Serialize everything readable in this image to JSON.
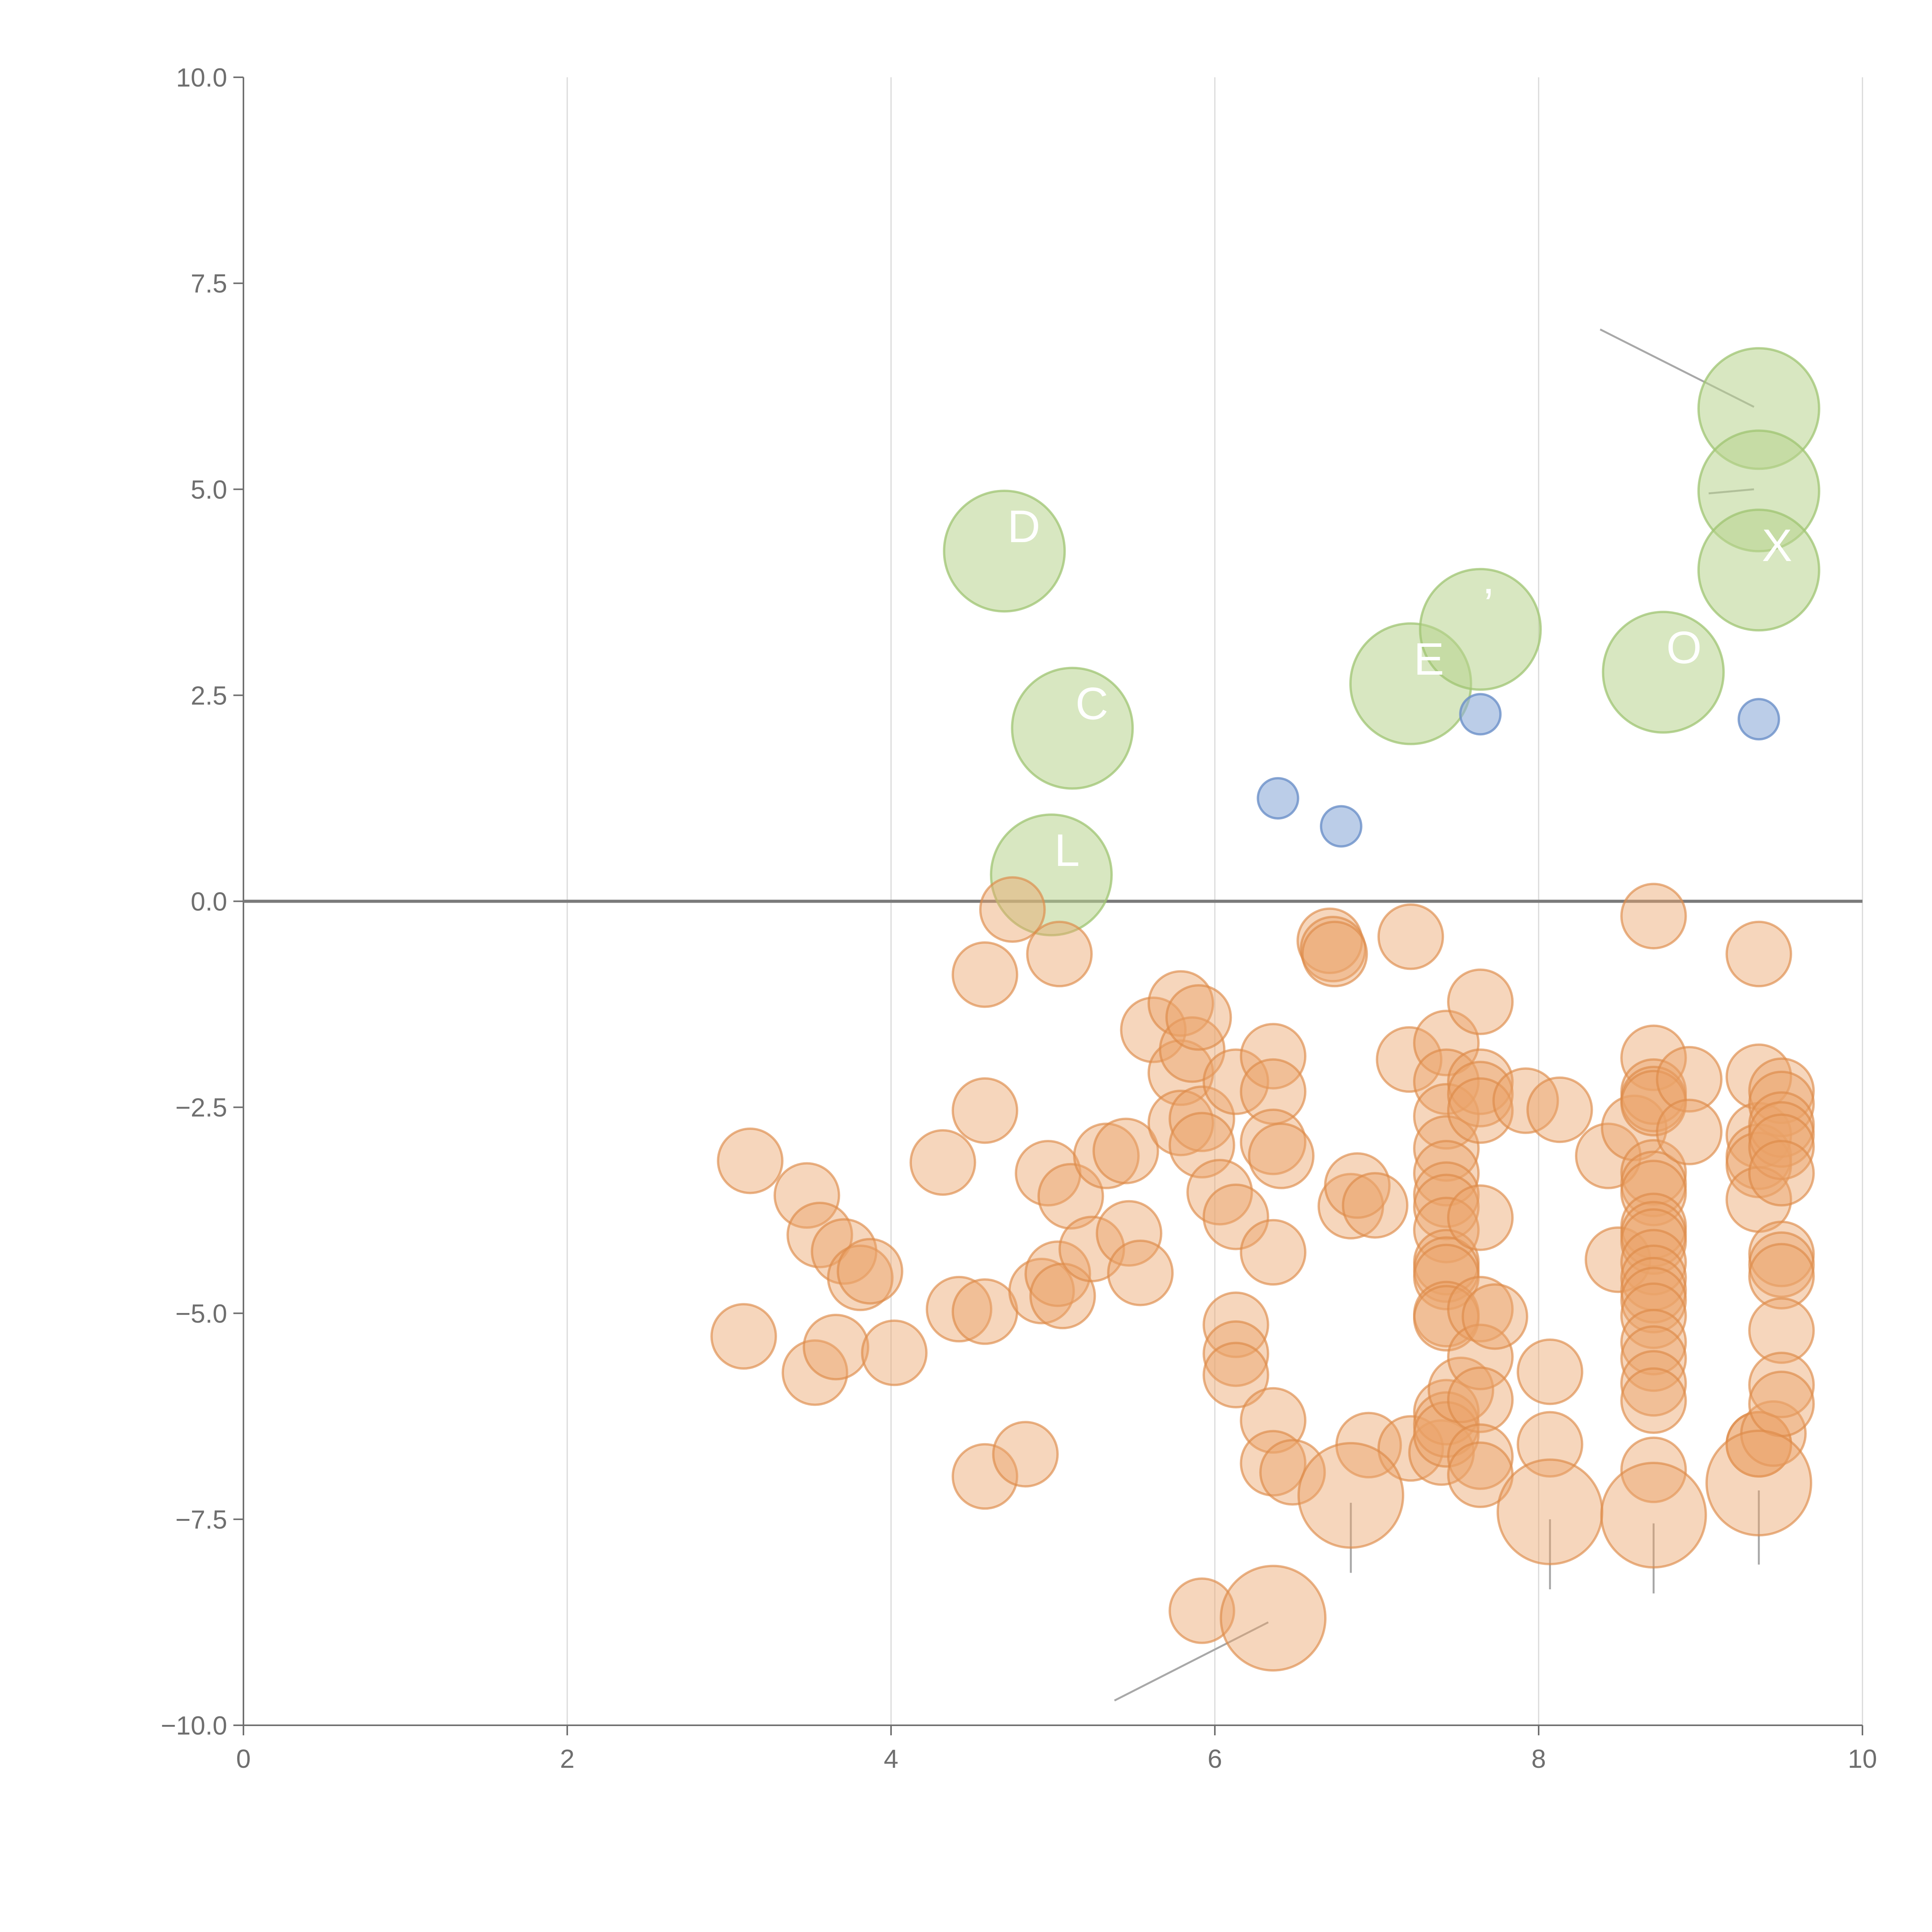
{
  "chart_data": {
    "type": "scatter",
    "title": "",
    "xlabel": "",
    "ylabel": "",
    "xlim": [
      0,
      10
    ],
    "ylim": [
      -10,
      10
    ],
    "x_ticks": [
      "0",
      "2",
      "4",
      "6",
      "8",
      "10"
    ],
    "y_ticks": [
      "10.0",
      "7.5",
      "5.0",
      "2.5",
      "0.0",
      "−2.5",
      "−5.0",
      "−7.5",
      "−10.0"
    ],
    "x_tick_values": [
      0,
      2,
      4,
      6,
      8,
      10
    ],
    "y_tick_values": [
      10,
      7.5,
      5,
      2.5,
      0,
      -2.5,
      -5,
      -7.5,
      -10
    ],
    "grid": "vertical",
    "reference_line_y": 0,
    "series": [
      {
        "name": "positive-large",
        "color": "#b8d48e",
        "stroke": "#9fc471",
        "opacity": 0.55,
        "size": 3,
        "points": [
          {
            "x": 4.7,
            "y": 4.25,
            "label": "D"
          },
          {
            "x": 5.12,
            "y": 2.1,
            "label": "C"
          },
          {
            "x": 4.99,
            "y": 0.32,
            "label": "L"
          },
          {
            "x": 7.21,
            "y": 2.64,
            "label": "E"
          },
          {
            "x": 7.64,
            "y": 3.3,
            "label": "’"
          },
          {
            "x": 8.77,
            "y": 2.78,
            "label": "O"
          },
          {
            "x": 9.36,
            "y": 5.98,
            "label": ""
          },
          {
            "x": 9.36,
            "y": 4.98,
            "label": ""
          },
          {
            "x": 9.36,
            "y": 4.02,
            "label": "X"
          }
        ]
      },
      {
        "name": "positive-small",
        "color": "#8eacd9",
        "stroke": "#6b90c8",
        "opacity": 0.6,
        "size": 1,
        "points": [
          {
            "x": 6.39,
            "y": 1.25
          },
          {
            "x": 6.78,
            "y": 0.91
          },
          {
            "x": 7.64,
            "y": 2.27
          },
          {
            "x": 9.36,
            "y": 2.21
          }
        ]
      },
      {
        "name": "negative",
        "color": "#eba46a",
        "stroke": "#dd8a48",
        "opacity": 0.45,
        "size": 1.6,
        "points": [
          [
            3.09,
            -5.28
          ],
          [
            3.13,
            -3.15
          ],
          [
            3.48,
            -3.57
          ],
          [
            3.53,
            -5.72
          ],
          [
            3.56,
            -4.05
          ],
          [
            3.66,
            -5.41
          ],
          [
            3.71,
            -4.25
          ],
          [
            3.81,
            -4.57
          ],
          [
            3.87,
            -4.49
          ],
          [
            4.02,
            -5.48
          ],
          [
            4.32,
            -3.17
          ],
          [
            4.42,
            -4.95
          ],
          [
            4.58,
            -0.89
          ],
          [
            4.58,
            -2.54
          ],
          [
            4.58,
            -4.98
          ],
          [
            4.58,
            -6.98
          ],
          [
            4.75,
            -0.1
          ],
          [
            4.83,
            -6.71
          ],
          [
            4.93,
            -4.73
          ],
          [
            4.97,
            -3.3
          ],
          [
            5.03,
            -4.52
          ],
          [
            5.04,
            -0.64
          ],
          [
            5.06,
            -4.79
          ],
          [
            5.11,
            -3.58
          ],
          [
            5.24,
            -4.22
          ],
          [
            5.33,
            -3.09
          ],
          [
            5.45,
            -3.03
          ],
          [
            5.47,
            -4.03
          ],
          [
            5.54,
            -4.51
          ],
          [
            5.62,
            -1.56
          ],
          [
            5.79,
            -1.24
          ],
          [
            5.79,
            -2.08
          ],
          [
            5.79,
            -2.69
          ],
          [
            5.86,
            -1.8
          ],
          [
            5.9,
            -1.41
          ],
          [
            5.92,
            -2.64
          ],
          [
            5.92,
            -2.96
          ],
          [
            6.03,
            -3.53
          ],
          [
            6.13,
            -2.19
          ],
          [
            6.13,
            -3.83
          ],
          [
            6.13,
            -5.14
          ],
          [
            6.13,
            -5.49
          ],
          [
            6.13,
            -5.75
          ],
          [
            6.36,
            -1.88
          ],
          [
            6.36,
            -2.31
          ],
          [
            6.36,
            -2.92
          ],
          [
            6.36,
            -4.26
          ],
          [
            6.36,
            -6.3
          ],
          [
            6.36,
            -6.82
          ],
          [
            6.41,
            -3.09
          ],
          [
            6.48,
            -6.93
          ],
          [
            6.71,
            -0.48
          ],
          [
            6.73,
            -0.58
          ],
          [
            6.74,
            -0.64
          ],
          [
            6.84,
            -3.7
          ],
          [
            6.88,
            -3.45
          ],
          [
            6.99,
            -3.69
          ],
          [
            6.95,
            -6.6
          ],
          [
            7.2,
            -1.92
          ],
          [
            7.21,
            -0.43
          ],
          [
            7.21,
            -6.64
          ],
          [
            7.4,
            -6.69
          ],
          [
            7.43,
            -1.72
          ],
          [
            7.43,
            -2.19
          ],
          [
            7.43,
            -2.61
          ],
          [
            7.43,
            -3.0
          ],
          [
            7.43,
            -3.3
          ],
          [
            7.43,
            -3.56
          ],
          [
            7.43,
            -3.71
          ],
          [
            7.43,
            -3.99
          ],
          [
            7.43,
            -4.38
          ],
          [
            7.43,
            -4.47
          ],
          [
            7.43,
            -4.56
          ],
          [
            7.43,
            -5.01
          ],
          [
            7.43,
            -5.06
          ],
          [
            7.43,
            -6.2
          ],
          [
            7.43,
            -6.35
          ],
          [
            7.43,
            -6.47
          ],
          [
            7.52,
            -5.93
          ],
          [
            7.64,
            -1.22
          ],
          [
            7.64,
            -2.19
          ],
          [
            7.64,
            -2.34
          ],
          [
            7.64,
            -2.54
          ],
          [
            7.64,
            -3.84
          ],
          [
            7.64,
            -4.95
          ],
          [
            7.64,
            -5.53
          ],
          [
            7.64,
            -6.05
          ],
          [
            7.64,
            -6.74
          ],
          [
            7.64,
            -6.96
          ],
          [
            7.73,
            -5.04
          ],
          [
            7.92,
            -2.42
          ],
          [
            8.07,
            -5.71
          ],
          [
            8.07,
            -6.59
          ],
          [
            8.13,
            -2.53
          ],
          [
            8.43,
            -3.09
          ],
          [
            8.49,
            -4.35
          ],
          [
            8.59,
            -2.75
          ],
          [
            8.71,
            -0.18
          ],
          [
            8.71,
            -1.9
          ],
          [
            8.71,
            -2.31
          ],
          [
            8.71,
            -2.4
          ],
          [
            8.71,
            -2.45
          ],
          [
            8.71,
            -3.29
          ],
          [
            8.71,
            -3.43
          ],
          [
            8.71,
            -3.54
          ],
          [
            8.71,
            -3.94
          ],
          [
            8.71,
            -4.04
          ],
          [
            8.71,
            -4.13
          ],
          [
            8.71,
            -4.38
          ],
          [
            8.71,
            -4.57
          ],
          [
            8.71,
            -4.72
          ],
          [
            8.71,
            -4.84
          ],
          [
            8.71,
            -5.03
          ],
          [
            8.71,
            -5.35
          ],
          [
            8.71,
            -5.55
          ],
          [
            8.71,
            -5.85
          ],
          [
            8.71,
            -6.06
          ],
          [
            8.71,
            -6.9
          ],
          [
            8.93,
            -2.16
          ],
          [
            8.93,
            -2.8
          ],
          [
            9.36,
            -0.64
          ],
          [
            9.36,
            -2.13
          ],
          [
            9.36,
            -2.84
          ],
          [
            9.36,
            -3.1
          ],
          [
            9.36,
            -3.2
          ],
          [
            9.36,
            -3.62
          ],
          [
            9.36,
            -6.59
          ],
          [
            9.36,
            -6.59
          ],
          [
            9.45,
            -6.46
          ],
          [
            9.5,
            -2.3
          ],
          [
            9.5,
            -2.46
          ],
          [
            9.5,
            -2.71
          ],
          [
            9.5,
            -2.83
          ],
          [
            9.5,
            -2.98
          ],
          [
            9.5,
            -3.3
          ],
          [
            9.5,
            -4.28
          ],
          [
            9.5,
            -4.41
          ],
          [
            9.5,
            -4.55
          ],
          [
            9.5,
            -5.21
          ],
          [
            9.5,
            -5.87
          ],
          [
            9.5,
            -6.1
          ],
          [
            5.92,
            -8.61
          ]
        ]
      },
      {
        "name": "negative-large",
        "color": "#eba46a",
        "stroke": "#dd8a48",
        "opacity": 0.45,
        "size": 2.6,
        "points": [
          {
            "x": 6.84,
            "y": -7.21
          },
          {
            "x": 8.07,
            "y": -7.41
          },
          {
            "x": 8.71,
            "y": -7.45
          },
          {
            "x": 9.36,
            "y": -7.06
          },
          {
            "x": 6.36,
            "y": -8.7
          }
        ]
      }
    ],
    "annotations": [
      {
        "from": [
          9.33,
          6.0
        ],
        "to": [
          8.38,
          6.94
        ]
      },
      {
        "from": [
          9.33,
          5.0
        ],
        "to": [
          9.05,
          4.95
        ]
      },
      {
        "from": [
          6.84,
          -7.3
        ],
        "to": [
          6.84,
          -8.15
        ]
      },
      {
        "from": [
          8.07,
          -7.5
        ],
        "to": [
          8.07,
          -8.35
        ]
      },
      {
        "from": [
          8.71,
          -7.55
        ],
        "to": [
          8.71,
          -8.4
        ]
      },
      {
        "from": [
          9.36,
          -7.15
        ],
        "to": [
          9.36,
          -8.05
        ]
      },
      {
        "from": [
          6.33,
          -8.75
        ],
        "to": [
          5.38,
          -9.7
        ]
      }
    ]
  }
}
